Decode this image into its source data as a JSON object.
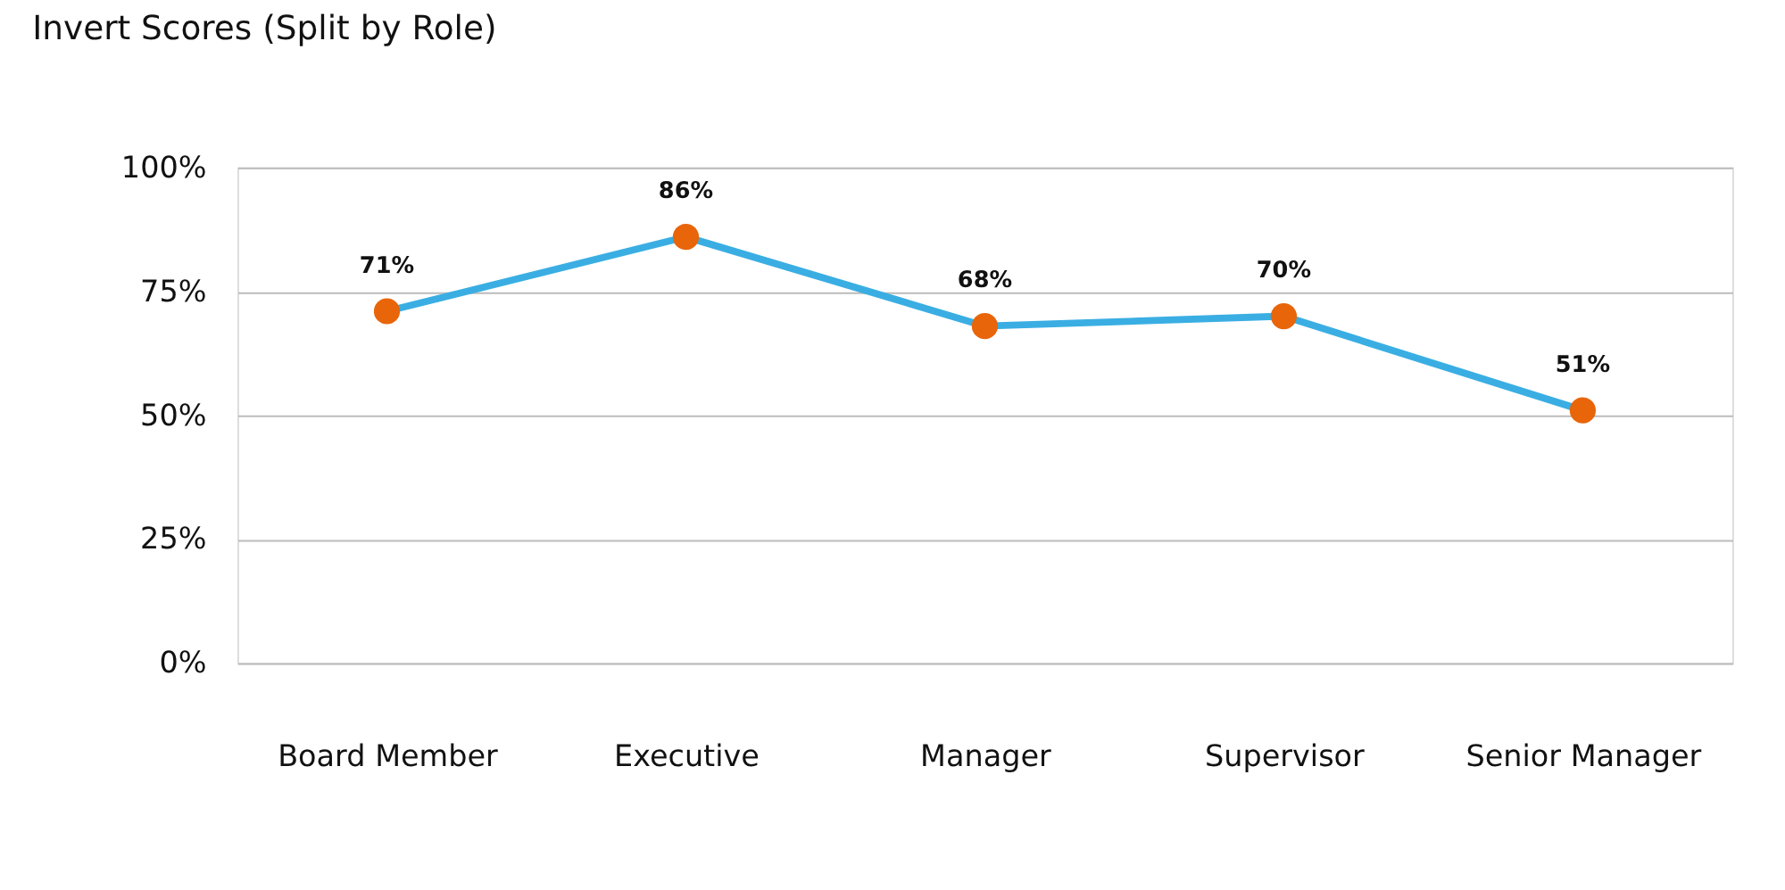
{
  "chart_data": {
    "type": "line",
    "title": "Invert Scores (Split by Role)",
    "categories": [
      "Board Member",
      "Executive",
      "Manager",
      "Supervisor",
      "Senior Manager"
    ],
    "series": [
      {
        "color": "#3aaee3",
        "colors": [
          "#e8650a",
          "#e8650a",
          "#e8650a",
          "#e8650a",
          "#e8650a"
        ],
        "values": [
          71,
          86,
          68,
          70,
          51
        ],
        "value_labels": [
          "71%",
          "86%",
          "68%",
          "70%",
          "51%"
        ]
      }
    ],
    "ylim": [
      0,
      100
    ],
    "yticks": [
      {
        "value": 0,
        "label": "0%"
      },
      {
        "value": 25,
        "label": "25%"
      },
      {
        "value": 50,
        "label": "50%"
      },
      {
        "value": 75,
        "label": "75%"
      },
      {
        "value": 100,
        "label": "100%"
      }
    ],
    "grid": "y",
    "marker": "circle",
    "line_style": "solid"
  }
}
